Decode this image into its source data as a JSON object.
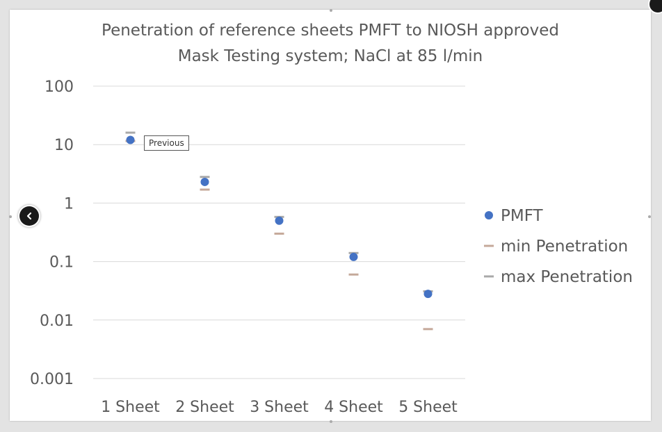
{
  "chart_data": {
    "type": "scatter",
    "title_lines": [
      "Penetration of reference sheets PMFT to NIOSH approved",
      "Mask Testing system; NaCl at 85 l/min"
    ],
    "categories": [
      "1 Sheet",
      "2 Sheet",
      "3 Sheet",
      "4 Sheet",
      "5 Sheet"
    ],
    "y_scale": "log",
    "ylim": [
      0.001,
      100
    ],
    "y_ticks": [
      "100",
      "10",
      "1",
      "0.1",
      "0.01",
      "0.001"
    ],
    "y_tick_values": [
      100,
      10,
      1,
      0.1,
      0.01,
      0.001
    ],
    "grid": true,
    "legend_position": "right",
    "series": [
      {
        "name": "PMFT",
        "marker": "circle",
        "color": "#4472c4",
        "values": [
          12,
          2.3,
          0.5,
          0.12,
          0.028
        ]
      },
      {
        "name": "min Penetration",
        "marker": "dash",
        "color": "#c5a99a",
        "values": [
          11.5,
          1.7,
          0.3,
          0.06,
          0.007
        ]
      },
      {
        "name": "max Penetration",
        "marker": "dash",
        "color": "#a9a9a9",
        "values": [
          16,
          2.8,
          0.58,
          0.14,
          0.031
        ]
      }
    ]
  },
  "ui": {
    "tooltip_text": "Previous"
  }
}
